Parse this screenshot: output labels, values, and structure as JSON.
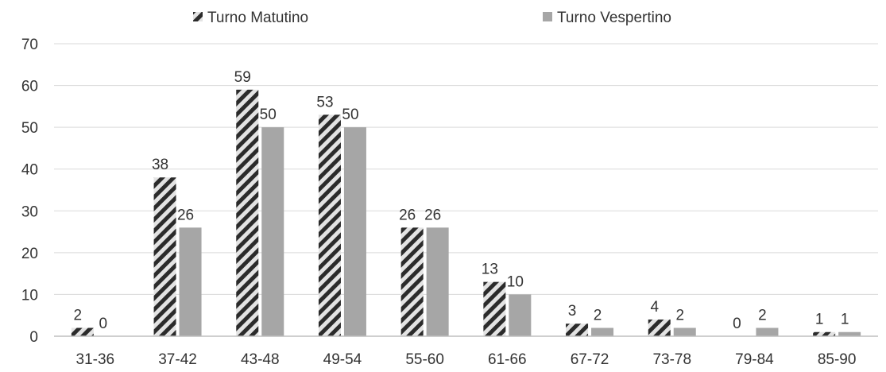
{
  "chart_data": {
    "type": "bar",
    "categories": [
      "31-36",
      "37-42",
      "43-48",
      "49-54",
      "55-60",
      "61-66",
      "67-72",
      "73-78",
      "79-84",
      "85-90"
    ],
    "series": [
      {
        "name": "Turno Matutino",
        "values": [
          2,
          38,
          59,
          53,
          26,
          13,
          3,
          4,
          0,
          1
        ],
        "pattern": "diagonal-hatch",
        "color": "#2b2b2b"
      },
      {
        "name": "Turno Vespertino",
        "values": [
          0,
          26,
          50,
          50,
          26,
          10,
          2,
          2,
          2,
          1
        ],
        "pattern": "solid",
        "color": "#a6a6a6"
      }
    ],
    "yticks": [
      0,
      10,
      20,
      30,
      40,
      50,
      60,
      70
    ],
    "ylim": [
      0,
      70
    ],
    "legend_position": "top",
    "grid": true,
    "colors": {
      "grid": "#d9d9d9",
      "axis": "#bfbfbf",
      "text": "#333333"
    }
  }
}
